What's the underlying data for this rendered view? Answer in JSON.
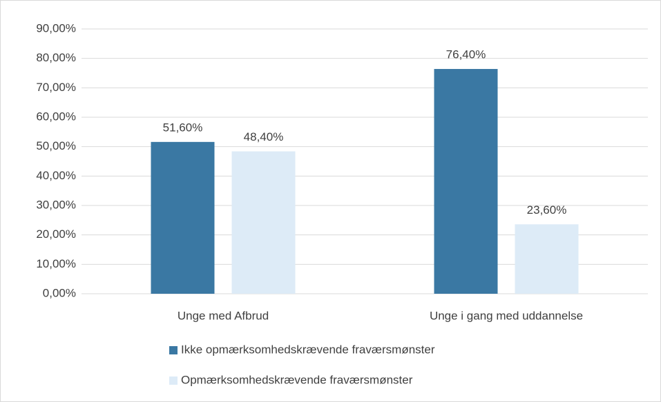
{
  "chart_data": {
    "type": "bar",
    "categories": [
      "Unge med Afbrud",
      "Unge i gang med uddannelse"
    ],
    "series": [
      {
        "name": "Ikke opmærksomhedskrævende fraværsmønster",
        "color": "#3a78a3",
        "values": [
          51.6,
          76.4
        ],
        "value_labels": [
          "51,60%",
          "76,40%"
        ]
      },
      {
        "name": "Opmærksomhedskrævende fraværsmønster",
        "color": "#ddebf7",
        "values": [
          48.4,
          23.6
        ],
        "value_labels": [
          "48,40%",
          "23,60%"
        ]
      }
    ],
    "ylim": [
      0,
      90
    ],
    "yticks": [
      {
        "value": 0,
        "label": "0,00%"
      },
      {
        "value": 10,
        "label": "10,00%"
      },
      {
        "value": 20,
        "label": "20,00%"
      },
      {
        "value": 30,
        "label": "30,00%"
      },
      {
        "value": 40,
        "label": "40,00%"
      },
      {
        "value": 50,
        "label": "50,00%"
      },
      {
        "value": 60,
        "label": "60,00%"
      },
      {
        "value": 70,
        "label": "70,00%"
      },
      {
        "value": 80,
        "label": "80,00%"
      },
      {
        "value": 90,
        "label": "90,00%"
      }
    ],
    "grid": true,
    "legend": "bottom"
  }
}
